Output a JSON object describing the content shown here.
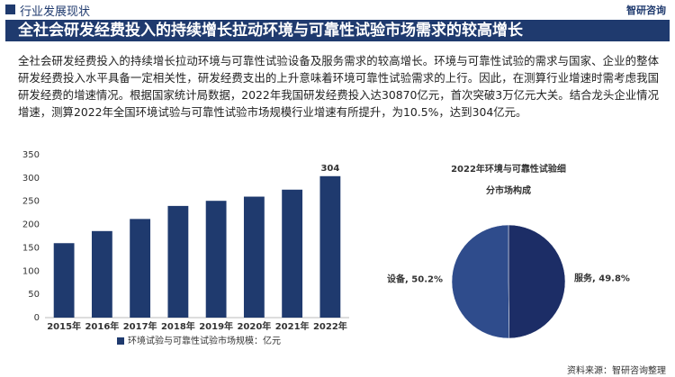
{
  "section": "行业发展现状",
  "logo": "智研咨询",
  "headline": "全社会研发经费投入的持续增长拉动环境与可靠性试验市场需求的较高增长",
  "body": "全社会研发经费投入的持续增长拉动环境与可靠性试验设备及服务需求的较高增长。环境与可靠性试验的需求与国家、企业的整体研发经费投入水平具备一定相关性，研发经费支出的上升意味着环境可靠性试验需求的上行。因此，在测算行业增速时需考虑我国研发经费的增速情况。根据国家统计局数据，2022年我国研发经费投入达30870亿元，首次突破3万亿元大关。结合龙头企业情况增速，测算2022年全国环境试验与可靠性试验市场规模行业增速有所提升，为10.5%，达到304亿元。",
  "source": "资料来源：智研咨询整理",
  "chart_data": [
    {
      "type": "bar",
      "categories": [
        "2015年",
        "2016年",
        "2017年",
        "2018年",
        "2019年",
        "2020年",
        "2021年",
        "2022年"
      ],
      "series": [
        {
          "name": "环境试验与可靠性试验市场规模：亿元",
          "color": "#1f3a6e",
          "values": [
            160,
            186,
            212,
            240,
            251,
            260,
            275,
            304
          ],
          "value_labels": [
            null,
            null,
            null,
            null,
            null,
            null,
            null,
            "304"
          ]
        }
      ],
      "ylim": [
        0,
        350
      ],
      "yticks": [
        0,
        50,
        100,
        150,
        200,
        250,
        300,
        350
      ],
      "grid": false
    },
    {
      "type": "pie",
      "title": "2022年环境与可靠性试验细分市场构成",
      "values": [
        49.8,
        50.2
      ],
      "value_labels": [
        "服务, 49.8%",
        "设备, 50.2%"
      ],
      "colors": [
        "#1c2d66",
        "#2f4c8c"
      ]
    }
  ]
}
